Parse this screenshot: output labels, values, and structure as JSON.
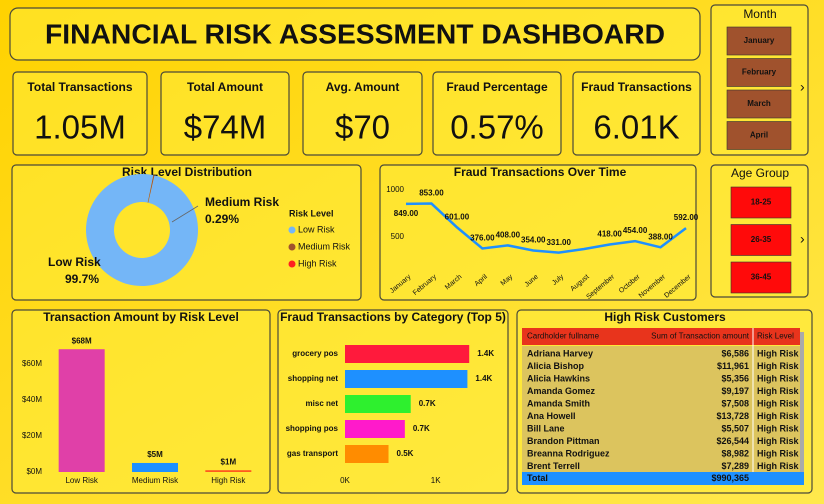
{
  "title": "FINANCIAL RISK ASSESSMENT DASHBOARD",
  "kpis": [
    {
      "label": "Total Transactions",
      "value": "1.05M"
    },
    {
      "label": "Total Amount",
      "value": "$74M"
    },
    {
      "label": "Avg. Amount",
      "value": "$70"
    },
    {
      "label": "Fraud Percentage",
      "value": "0.57%"
    },
    {
      "label": "Fraud Transactions",
      "value": "6.01K"
    }
  ],
  "slicers": [
    {
      "title": "Month",
      "items": [
        "January",
        "February",
        "March",
        "April"
      ],
      "color": "#a0522d"
    },
    {
      "title": "Age Group",
      "items": [
        "18-25",
        "26-35",
        "36-45"
      ],
      "color": "#ff0a0a"
    }
  ],
  "chart_data": [
    {
      "type": "pie",
      "title": "Risk Level Distribution",
      "legend_title": "Risk Level",
      "donut": true,
      "legend": "right",
      "categories": [
        "Low Risk",
        "Medium Risk",
        "High Risk"
      ],
      "values": [
        99.7,
        0.29,
        0.01
      ],
      "value_labels": [
        "99.7%",
        "0.29%",
        null
      ],
      "colors": [
        "#74b6f7",
        "#a0522d",
        "#ff2020"
      ]
    },
    {
      "type": "line",
      "title": "Fraud Transactions Over Time",
      "categories": [
        "January",
        "February",
        "March",
        "April",
        "May",
        "June",
        "July",
        "August",
        "September",
        "October",
        "November",
        "December"
      ],
      "values": [
        849,
        853,
        601,
        376,
        408,
        354,
        331,
        370,
        418,
        454,
        388,
        592
      ],
      "value_labels": [
        "849.00",
        "853.00",
        "601.00",
        "376.00",
        "408.00",
        "354.00",
        "331.00",
        null,
        "418.00",
        "454.00",
        "388.00",
        "592.00"
      ],
      "color": "#1e90ff",
      "ylim": [
        200,
        1050
      ],
      "yticks": [
        500,
        1000
      ]
    },
    {
      "type": "bar",
      "title": "Transaction Amount by Risk Level",
      "categories": [
        "Low Risk",
        "Medium Risk",
        "High Risk"
      ],
      "values": [
        68000000,
        5000000,
        1000000
      ],
      "value_labels": [
        "$68M",
        "$5M",
        "$1M"
      ],
      "colors": [
        "#e040a8",
        "#1e90ff",
        "#ff5a1f"
      ],
      "ylim": [
        0,
        72000000
      ],
      "yticks": [
        {
          "value": 0,
          "label": "$0M"
        },
        {
          "value": 20000000,
          "label": "$20M"
        },
        {
          "value": 40000000,
          "label": "$40M"
        },
        {
          "value": 60000000,
          "label": "$60M"
        }
      ]
    },
    {
      "type": "hbar",
      "title": "Fraud Transactions by Category (Top 5)",
      "categories": [
        "grocery pos",
        "shopping net",
        "misc net",
        "shopping pos",
        "gas transport"
      ],
      "values": [
        1370,
        1350,
        725,
        660,
        480
      ],
      "value_labels": [
        "1.4K",
        "1.4K",
        "0.7K",
        "0.7K",
        "0.5K"
      ],
      "colors": [
        "#ff1a3c",
        "#1e90ff",
        "#2ef02e",
        "#ff1acb",
        "#ff8c00"
      ],
      "xlim": [
        0,
        1500
      ],
      "xticks": [
        {
          "value": 0,
          "label": "0K"
        },
        {
          "value": 1000,
          "label": "1K"
        }
      ]
    }
  ],
  "table": {
    "title": "High Risk Customers",
    "columns": [
      "Cardholder fullname",
      "Sum of Transaction amount",
      "Risk Level"
    ],
    "rows": [
      [
        "Adriana Harvey",
        "$6,586",
        "High Risk"
      ],
      [
        "Alicia Bishop",
        "$11,961",
        "High Risk"
      ],
      [
        "Alicia Hawkins",
        "$5,356",
        "High Risk"
      ],
      [
        "Amanda Gomez",
        "$9,197",
        "High Risk"
      ],
      [
        "Amanda Smith",
        "$7,508",
        "High Risk"
      ],
      [
        "Ana Howell",
        "$13,728",
        "High Risk"
      ],
      [
        "Bill Lane",
        "$5,507",
        "High Risk"
      ],
      [
        "Brandon Pittman",
        "$26,544",
        "High Risk"
      ],
      [
        "Breanna Rodriguez",
        "$8,982",
        "High Risk"
      ],
      [
        "Brent Terrell",
        "$7,289",
        "High Risk"
      ]
    ],
    "total": [
      "Total",
      "$990,365"
    ]
  }
}
